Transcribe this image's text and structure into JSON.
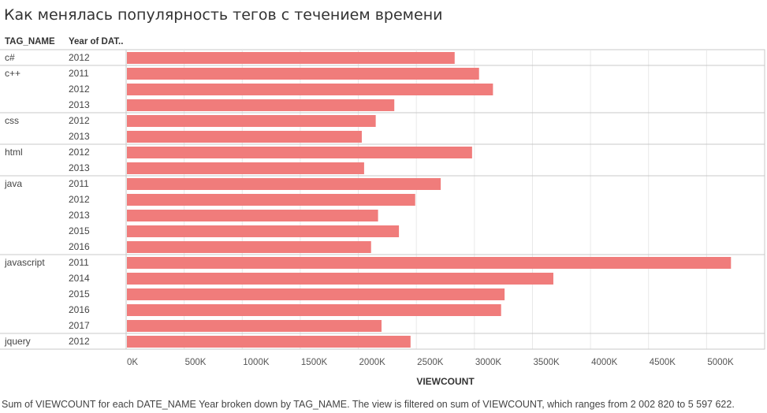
{
  "title": "Как менялась популярность тегов с течением времени",
  "headers": {
    "tag": "TAG_NAME",
    "year": "Year of DAT.."
  },
  "footer": "Sum of VIEWCOUNT for each DATE_NAME Year broken down by TAG_NAME. The view is filtered on sum of VIEWCOUNT, which ranges from 2 002 820 to 5 597 622.",
  "colors": {
    "bar": "#f07c7b",
    "grid": "#e8e8e8",
    "divider": "#c8c8c8"
  },
  "chart_data": {
    "type": "bar",
    "orientation": "horizontal",
    "xlabel": "VIEWCOUNT",
    "xlim": [
      0,
      5500000
    ],
    "ticks": [
      0,
      500000,
      1000000,
      1500000,
      2000000,
      2500000,
      3000000,
      3500000,
      4000000,
      4500000,
      5000000
    ],
    "tick_labels": [
      "0K",
      "500K",
      "1000K",
      "1500K",
      "2000K",
      "2500K",
      "3000K",
      "3500K",
      "4000K",
      "4500K",
      "5000K"
    ],
    "grid": true,
    "groups": [
      {
        "tag": "c#",
        "rows": [
          {
            "year": "2012",
            "value": 2830000
          }
        ]
      },
      {
        "tag": "c++",
        "rows": [
          {
            "year": "2011",
            "value": 3040000
          },
          {
            "year": "2012",
            "value": 3160000
          },
          {
            "year": "2013",
            "value": 2310000
          }
        ]
      },
      {
        "tag": "css",
        "rows": [
          {
            "year": "2012",
            "value": 2150000
          },
          {
            "year": "2013",
            "value": 2030000
          }
        ]
      },
      {
        "tag": "html",
        "rows": [
          {
            "year": "2012",
            "value": 2980000
          },
          {
            "year": "2013",
            "value": 2050000
          }
        ]
      },
      {
        "tag": "java",
        "rows": [
          {
            "year": "2011",
            "value": 2710000
          },
          {
            "year": "2012",
            "value": 2490000
          },
          {
            "year": "2013",
            "value": 2170000
          },
          {
            "year": "2015",
            "value": 2350000
          },
          {
            "year": "2016",
            "value": 2110000
          }
        ]
      },
      {
        "tag": "javascript",
        "rows": [
          {
            "year": "2011",
            "value": 5210000
          },
          {
            "year": "2014",
            "value": 3680000
          },
          {
            "year": "2015",
            "value": 3260000
          },
          {
            "year": "2016",
            "value": 3230000
          },
          {
            "year": "2017",
            "value": 2200000
          }
        ]
      },
      {
        "tag": "jquery",
        "rows": [
          {
            "year": "2012",
            "value": 2450000
          }
        ]
      }
    ]
  }
}
